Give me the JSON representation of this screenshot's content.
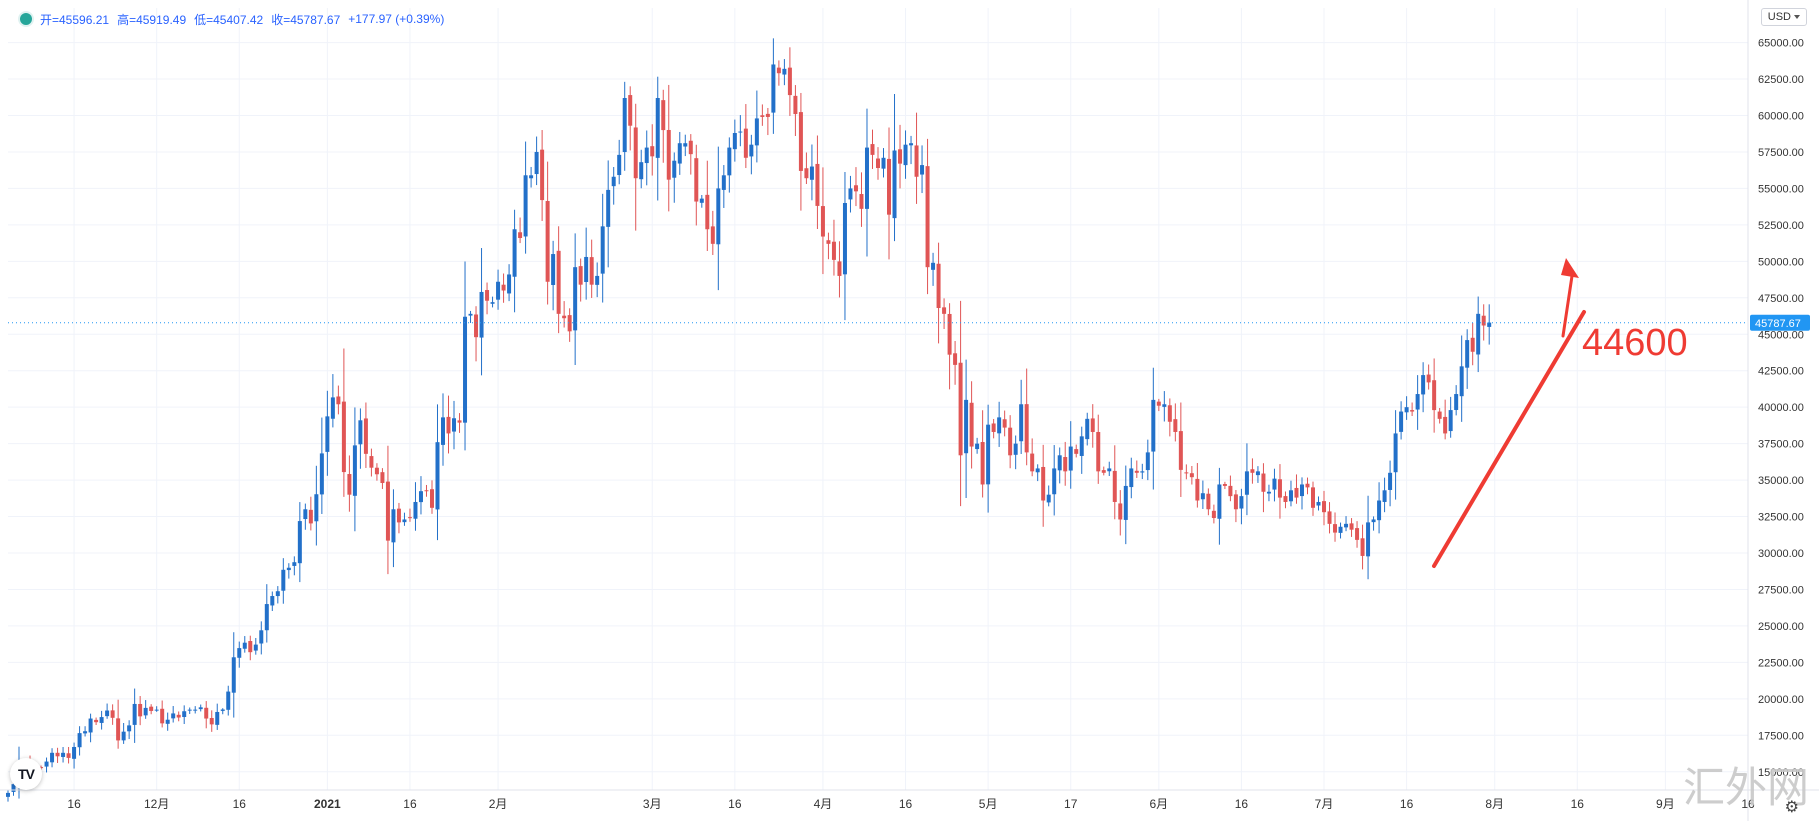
{
  "legend": {
    "open": "开=45596.21",
    "high": "高=45919.49",
    "low": "低=45407.42",
    "close": "收=45787.67",
    "change": "+177.97 (+0.39%)"
  },
  "currency": "USD",
  "logo_text": "TV",
  "watermark": "汇外网",
  "colors": {
    "up": "#2270c9",
    "down": "#e05555",
    "annotation": "#ef3b33",
    "last_price_bg": "#2196f3",
    "grid": "#f0f3fa"
  },
  "chart_data": {
    "type": "candlestick",
    "ylim": [
      13750,
      66000
    ],
    "y_ticks": [
      15000,
      17500,
      20000,
      22500,
      25000,
      27500,
      30000,
      32500,
      35000,
      37500,
      40000,
      42500,
      45000,
      47500,
      50000,
      52500,
      55000,
      57500,
      60000,
      62500,
      65000
    ],
    "y_tick_labels": [
      "15000.00",
      "17500.00",
      "20000.00",
      "22500.00",
      "25000.00",
      "27500.00",
      "30000.00",
      "32500.00",
      "35000.00",
      "37500.00",
      "40000.00",
      "42500.00",
      "45000.00",
      "47500.00",
      "50000.00",
      "52500.00",
      "55000.00",
      "57500.00",
      "60000.00",
      "62500.00",
      "65000.00"
    ],
    "x_range": [
      "2020-11-04",
      "2021-09-16"
    ],
    "x_ticks": [
      {
        "date": "2020-11-16",
        "label": "16"
      },
      {
        "date": "2020-12-01",
        "label": "12月"
      },
      {
        "date": "2020-12-16",
        "label": "16"
      },
      {
        "date": "2021-01-01",
        "label": "2021"
      },
      {
        "date": "2021-01-16",
        "label": "16"
      },
      {
        "date": "2021-02-01",
        "label": "2月"
      },
      {
        "date": "2021-03-01",
        "label": "3月"
      },
      {
        "date": "2021-03-16",
        "label": "16"
      },
      {
        "date": "2021-04-01",
        "label": "4月"
      },
      {
        "date": "2021-04-16",
        "label": "16"
      },
      {
        "date": "2021-05-01",
        "label": "5月"
      },
      {
        "date": "2021-05-16",
        "label": "17"
      },
      {
        "date": "2021-06-01",
        "label": "6月"
      },
      {
        "date": "2021-06-16",
        "label": "16"
      },
      {
        "date": "2021-07-01",
        "label": "7月"
      },
      {
        "date": "2021-07-16",
        "label": "16"
      },
      {
        "date": "2021-08-01",
        "label": "8月"
      },
      {
        "date": "2021-08-16",
        "label": "16"
      },
      {
        "date": "2021-09-01",
        "label": "9月"
      },
      {
        "date": "2021-09-16",
        "label": "16"
      }
    ],
    "last_price": 45787.67,
    "last_price_label": "45787.67",
    "start_date": "2020-11-04",
    "closes": [
      13550,
      14150,
      15600,
      15600,
      14850,
      15340,
      15300,
      15700,
      16300,
      16060,
      16300,
      15950,
      16700,
      17650,
      17780,
      18650,
      18400,
      18750,
      19200,
      18700,
      17150,
      17750,
      18180,
      19650,
      18800,
      19380,
      19170,
      19260,
      18320,
      18570,
      19000,
      18720,
      19150,
      19260,
      19260,
      19420,
      18650,
      18250,
      19100,
      19270,
      20500,
      22850,
      23480,
      23850,
      23200,
      23720,
      24700,
      26500,
      27050,
      27380,
      28850,
      28990,
      29370,
      32190,
      33000,
      32030,
      34030,
      36830,
      39370,
      40670,
      40200,
      35550,
      34000,
      37380,
      39100,
      36800,
      35850,
      35400,
      34800,
      30850,
      33000,
      32100,
      32300,
      32450,
      33500,
      34240,
      34300,
      33100,
      37600,
      39300,
      38200,
      39240,
      38940,
      46200,
      46400,
      44800,
      47900,
      47300,
      47200,
      48600,
      48000,
      49100,
      52200,
      51600,
      55900,
      55900,
      57500,
      54200,
      48600,
      50500,
      46400,
      46100,
      45200,
      49600,
      48400,
      50300,
      48400,
      49000,
      52400,
      54900,
      55800,
      57300,
      61200,
      59300,
      55700,
      56800,
      57800,
      57200,
      61200,
      59000,
      55600,
      56900,
      58100,
      58100,
      57350,
      54100,
      54300,
      52200,
      51200,
      55000,
      55900,
      57800,
      58800,
      58900,
      57100,
      58000,
      59800,
      59900,
      59900,
      63500,
      62900,
      63200,
      61400,
      60100,
      56200,
      55700,
      56500,
      53800,
      51700,
      51200,
      50100,
      49000,
      54000,
      55000,
      54800,
      53600,
      57800,
      57300,
      56400,
      57100,
      53200,
      57600,
      56700,
      58000,
      58100,
      55800,
      56600,
      49600,
      49900,
      46800,
      46400,
      43600,
      42900,
      36700,
      40500,
      37300,
      37500,
      34700,
      38800,
      38300,
      39300,
      38600,
      36700,
      37500,
      40200,
      36900,
      35600,
      35800,
      33600,
      34000,
      35800,
      36700,
      35600,
      37300,
      36800,
      38000,
      39200,
      38300,
      35600,
      35500,
      35800,
      33500,
      32300,
      34600,
      35800,
      35500,
      35600,
      36900,
      40500,
      40100,
      40200,
      39000,
      38300,
      35700,
      35500,
      35200,
      33600,
      34100,
      33000,
      32400,
      34700,
      34600,
      33900,
      33000,
      33900,
      35600,
      35500,
      35600,
      34200,
      34200,
      35100,
      33800,
      33500,
      34300,
      33800,
      34700,
      34500,
      33100,
      33500,
      32800,
      32000,
      31400,
      31800,
      32000,
      31600,
      30900,
      29800,
      32100,
      32300,
      33600,
      34300,
      35500,
      38200,
      39700,
      40000,
      39700,
      40900,
      42200,
      41700,
      39800,
      39200,
      38200,
      39800,
      40900,
      42800,
      44600,
      43800,
      46400,
      45600,
      45800
    ],
    "annotation_text": "44600"
  }
}
